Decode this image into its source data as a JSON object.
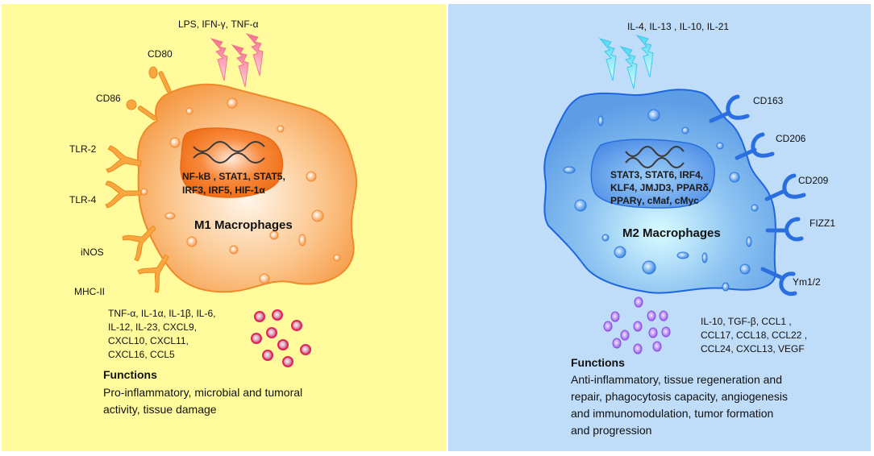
{
  "colors": {
    "m1_panel": "#fffb9c",
    "m2_panel": "#bfdcf8",
    "m1_cell": "#f7a55a",
    "m2_cell": "#5b9bea",
    "m1_secreted": "#e0245e",
    "m2_secreted": "#a068e8"
  },
  "m1": {
    "stimuli": "LPS, IFN-γ, TNF-α",
    "title": "M1 Macrophages",
    "receptors": [
      "CD80",
      "CD86",
      "TLR-2",
      "TLR-4",
      "iNOS",
      "MHC-II"
    ],
    "transcription_factors": [
      "NF-kB , STAT1, STAT5,",
      "IRF3, IRF5, HIF-1α"
    ],
    "secreted": [
      "TNF-α, IL-1α, IL-1β, IL-6,",
      "IL-12, IL-23, CXCL9,",
      "CXCL10, CXCL11,",
      "CXCL16, CCL5"
    ],
    "functions_heading": "Functions",
    "functions": [
      "Pro-inflammatory, microbial and tumoral",
      "activity, tissue damage"
    ]
  },
  "m2": {
    "stimuli": "IL-4, IL-13 , IL-10, IL-21",
    "title": "M2 Macrophages",
    "receptors": [
      "CD163",
      "CD206",
      "CD209",
      "FIZZ1",
      "Ym1/2"
    ],
    "transcription_factors": [
      "STAT3, STAT6, IRF4,",
      "KLF4, JMJD3, PPARδ,",
      "PPARγ, cMaf, cMyc"
    ],
    "secreted": [
      "IL-10, TGF-β, CCL1 ,",
      "CCL17, CCL18, CCL22 ,",
      "CCL24, CXCL13, VEGF"
    ],
    "functions_heading": "Functions",
    "functions": [
      "Anti-inflammatory, tissue regeneration and",
      "repair, phagocytosis capacity, angiogenesis",
      "and immunomodulation, tumor formation",
      "and progression"
    ]
  }
}
